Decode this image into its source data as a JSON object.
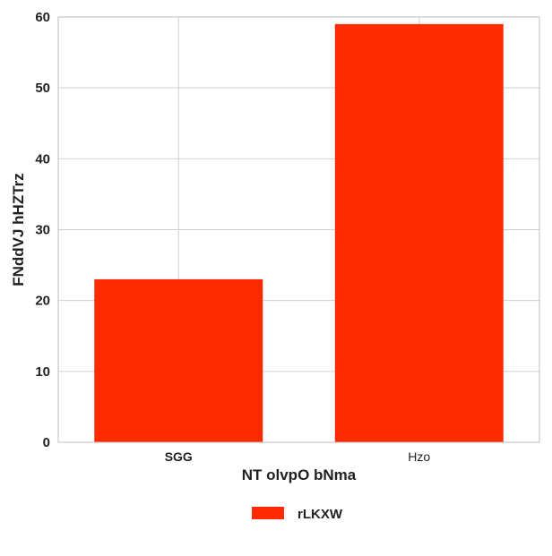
{
  "chart_data": {
    "type": "bar",
    "title": "",
    "xlabel": "NT olvpO bNma",
    "ylabel": "FNddVJ hHZTrz",
    "categories": [
      "SGG",
      "Hzo"
    ],
    "category_label_bold": [
      true,
      false
    ],
    "series": [
      {
        "name": "rLKXW",
        "values": [
          23,
          59
        ],
        "color": "#ff2a00"
      }
    ],
    "ylim": [
      0,
      60
    ],
    "yticks": [
      0,
      10,
      20,
      30,
      40,
      50,
      60
    ],
    "grid": true,
    "legend_position": "bottom-center"
  }
}
